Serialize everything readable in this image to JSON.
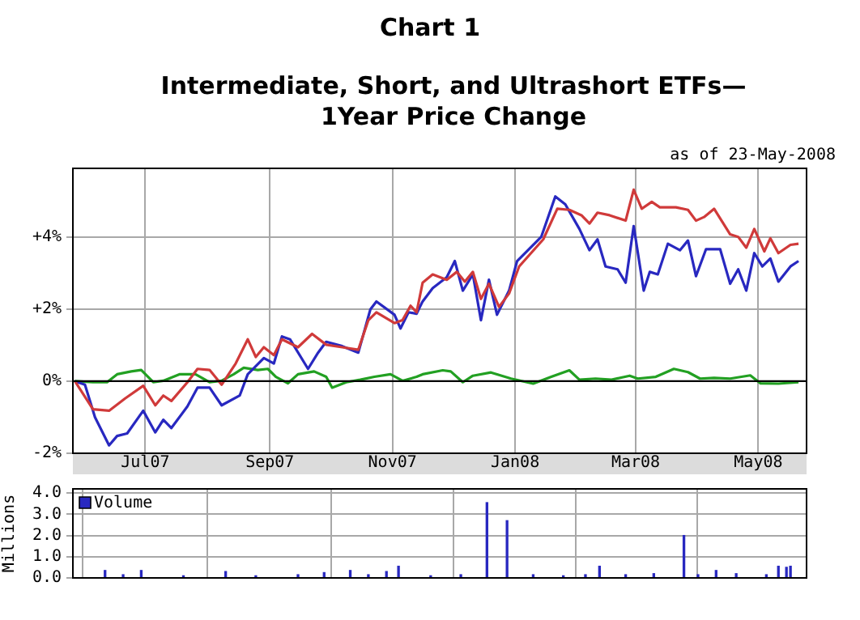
{
  "chart_data": [
    {
      "type": "line",
      "title": "Chart 1",
      "subtitle": "Intermediate, Short, and Ultrashort ETFs—1Year Price Change",
      "annotations": [
        "as of 23-May-2008"
      ],
      "xlim": [
        "2007-05-26",
        "2008-05-25"
      ],
      "xticks": [
        {
          "value": "2007-07-01",
          "label": "Jul07"
        },
        {
          "value": "2007-09-01",
          "label": "Sep07"
        },
        {
          "value": "2007-11-01",
          "label": "Nov07"
        },
        {
          "value": "2008-01-01",
          "label": "Jan08"
        },
        {
          "value": "2008-03-01",
          "label": "Mar08"
        },
        {
          "value": "2008-05-01",
          "label": "May08"
        }
      ],
      "ylim": [
        -2,
        5.9
      ],
      "yticks": [
        {
          "value": 4,
          "label": "+4%"
        },
        {
          "value": 2,
          "label": "+2%"
        },
        {
          "value": 0,
          "label": "0%"
        },
        {
          "value": -2,
          "label": "-2%"
        }
      ],
      "grid": true,
      "legend": false,
      "ref_lines": [
        {
          "axis": "y",
          "value": 0,
          "color": "#000000"
        }
      ],
      "series": [
        {
          "color": "#d03a3a",
          "x": [
            "2007-05-27",
            "2007-06-05",
            "2007-06-13",
            "2007-06-21",
            "2007-06-30",
            "2007-07-06",
            "2007-07-10",
            "2007-07-14",
            "2007-07-22",
            "2007-07-27",
            "2007-08-02",
            "2007-08-08",
            "2007-08-15",
            "2007-08-21",
            "2007-08-25",
            "2007-08-29",
            "2007-09-03",
            "2007-09-07",
            "2007-09-15",
            "2007-09-22",
            "2007-09-29",
            "2007-10-07",
            "2007-10-15",
            "2007-10-20",
            "2007-10-24",
            "2007-11-02",
            "2007-11-06",
            "2007-11-10",
            "2007-11-13",
            "2007-11-16",
            "2007-11-21",
            "2007-11-28",
            "2007-12-03",
            "2007-12-07",
            "2007-12-11",
            "2007-12-15",
            "2007-12-19",
            "2007-12-24",
            "2007-12-29",
            "2008-01-03",
            "2008-01-15",
            "2008-01-22",
            "2008-01-28",
            "2008-02-03",
            "2008-02-07",
            "2008-02-11",
            "2008-02-17",
            "2008-02-25",
            "2008-02-29",
            "2008-03-04",
            "2008-03-09",
            "2008-03-13",
            "2008-03-21",
            "2008-03-27",
            "2008-03-31",
            "2008-04-04",
            "2008-04-09",
            "2008-04-17",
            "2008-04-21",
            "2008-04-25",
            "2008-04-29",
            "2008-05-04",
            "2008-05-07",
            "2008-05-11",
            "2008-05-17",
            "2008-05-21"
          ],
          "values": [
            0,
            -0.78,
            -0.82,
            -0.48,
            -0.13,
            -0.67,
            -0.4,
            -0.55,
            -0.03,
            0.34,
            0.31,
            -0.1,
            0.49,
            1.16,
            0.67,
            0.94,
            0.72,
            1.16,
            0.94,
            1.31,
            1.01,
            0.94,
            0.87,
            1.69,
            1.91,
            1.61,
            1.69,
            2.09,
            1.91,
            2.73,
            2.96,
            2.81,
            3.03,
            2.76,
            3.03,
            2.28,
            2.7,
            2.06,
            2.43,
            3.18,
            3.93,
            4.78,
            4.75,
            4.6,
            4.37,
            4.67,
            4.6,
            4.45,
            5.31,
            4.78,
            4.97,
            4.82,
            4.82,
            4.75,
            4.45,
            4.55,
            4.78,
            4.07,
            4.0,
            3.7,
            4.22,
            3.6,
            3.96,
            3.55,
            3.78,
            3.81
          ]
        },
        {
          "color": "#2828c0",
          "x": [
            "2007-05-27",
            "2007-06-01",
            "2007-06-06",
            "2007-06-13",
            "2007-06-17",
            "2007-06-22",
            "2007-06-30",
            "2007-07-06",
            "2007-07-10",
            "2007-07-14",
            "2007-07-22",
            "2007-07-27",
            "2007-08-02",
            "2007-08-08",
            "2007-08-17",
            "2007-08-21",
            "2007-08-29",
            "2007-09-03",
            "2007-09-07",
            "2007-09-11",
            "2007-09-20",
            "2007-09-25",
            "2007-09-29",
            "2007-10-07",
            "2007-10-15",
            "2007-10-21",
            "2007-10-24",
            "2007-11-02",
            "2007-11-05",
            "2007-11-09",
            "2007-11-13",
            "2007-11-16",
            "2007-11-21",
            "2007-11-28",
            "2007-12-02",
            "2007-12-06",
            "2007-12-11",
            "2007-12-15",
            "2007-12-19",
            "2007-12-23",
            "2007-12-29",
            "2008-01-02",
            "2008-01-14",
            "2008-01-21",
            "2008-01-26",
            "2008-02-02",
            "2008-02-07",
            "2008-02-11",
            "2008-02-15",
            "2008-02-21",
            "2008-02-25",
            "2008-02-29",
            "2008-03-05",
            "2008-03-08",
            "2008-03-12",
            "2008-03-17",
            "2008-03-23",
            "2008-03-27",
            "2008-03-31",
            "2008-04-05",
            "2008-04-12",
            "2008-04-17",
            "2008-04-21",
            "2008-04-25",
            "2008-04-29",
            "2008-05-03",
            "2008-05-07",
            "2008-05-11",
            "2008-05-17",
            "2008-05-21"
          ],
          "values": [
            0,
            -0.1,
            -1.0,
            -1.78,
            -1.52,
            -1.45,
            -0.82,
            -1.42,
            -1.07,
            -1.3,
            -0.7,
            -0.18,
            -0.18,
            -0.67,
            -0.4,
            0.19,
            0.64,
            0.49,
            1.24,
            1.16,
            0.34,
            0.79,
            1.09,
            0.97,
            0.79,
            1.99,
            2.21,
            1.84,
            1.46,
            1.91,
            1.87,
            2.21,
            2.58,
            2.88,
            3.33,
            2.51,
            2.96,
            1.69,
            2.81,
            1.84,
            2.51,
            3.33,
            4.0,
            5.12,
            4.9,
            4.22,
            3.63,
            3.93,
            3.18,
            3.1,
            2.73,
            4.3,
            2.51,
            3.03,
            2.96,
            3.81,
            3.63,
            3.9,
            2.91,
            3.66,
            3.66,
            2.7,
            3.1,
            2.51,
            3.55,
            3.18,
            3.4,
            2.76,
            3.18,
            3.33
          ]
        },
        {
          "color": "#22a022",
          "x": [
            "2007-05-27",
            "2007-06-05",
            "2007-06-12",
            "2007-06-17",
            "2007-06-24",
            "2007-06-29",
            "2007-07-05",
            "2007-07-10",
            "2007-07-18",
            "2007-07-26",
            "2007-08-02",
            "2007-08-08",
            "2007-08-14",
            "2007-08-19",
            "2007-08-26",
            "2007-08-31",
            "2007-09-04",
            "2007-09-10",
            "2007-09-15",
            "2007-09-23",
            "2007-09-29",
            "2007-10-02",
            "2007-10-09",
            "2007-10-16",
            "2007-10-23",
            "2007-10-31",
            "2007-11-06",
            "2007-11-13",
            "2007-11-16",
            "2007-11-26",
            "2007-11-30",
            "2007-12-06",
            "2007-12-11",
            "2007-12-20",
            "2007-12-30",
            "2008-01-10",
            "2008-01-19",
            "2008-01-28",
            "2008-02-02",
            "2008-02-10",
            "2008-02-18",
            "2008-02-27",
            "2008-03-02",
            "2008-03-11",
            "2008-03-20",
            "2008-03-27",
            "2008-04-02",
            "2008-04-09",
            "2008-04-17",
            "2008-04-27",
            "2008-05-02",
            "2008-05-11",
            "2008-05-21"
          ],
          "values": [
            0,
            -0.03,
            -0.03,
            0.19,
            0.27,
            0.31,
            -0.03,
            0.01,
            0.19,
            0.19,
            -0.03,
            0.01,
            0.19,
            0.37,
            0.31,
            0.34,
            0.12,
            -0.06,
            0.19,
            0.27,
            0.12,
            -0.18,
            -0.03,
            0.04,
            0.12,
            0.19,
            0.01,
            0.12,
            0.19,
            0.3,
            0.27,
            -0.03,
            0.15,
            0.24,
            0.07,
            -0.07,
            0.12,
            0.3,
            0.04,
            0.07,
            0.04,
            0.15,
            0.07,
            0.12,
            0.34,
            0.25,
            0.07,
            0.09,
            0.07,
            0.16,
            -0.06,
            -0.07,
            -0.03
          ]
        }
      ]
    },
    {
      "type": "bar",
      "ylabel": "Millions",
      "legend": "top left",
      "grid": true,
      "tick_labels": "y",
      "xlim": [
        "2007-05-26",
        "2008-05-25"
      ],
      "xticks": [
        {
          "value": "2007-07-01",
          "label": null
        },
        {
          "value": "2007-09-01",
          "label": null
        },
        {
          "value": "2007-11-01",
          "label": null
        },
        {
          "value": "2008-01-01",
          "label": null
        },
        {
          "value": "2008-03-01",
          "label": null
        },
        {
          "value": "2008-05-01",
          "label": null
        }
      ],
      "ylim": [
        0,
        4.2
      ],
      "yticks": [
        {
          "value": 0,
          "label": "0.0"
        },
        {
          "value": 1,
          "label": "1.0"
        },
        {
          "value": 2,
          "label": "2.0"
        },
        {
          "value": 3,
          "label": "3.0"
        },
        {
          "value": 4,
          "label": "4.0"
        }
      ],
      "series": [
        {
          "name": "Volume",
          "color": "#2828c0",
          "x": [
            "2007-06-11",
            "2007-06-20",
            "2007-06-29",
            "2007-07-20",
            "2007-08-10",
            "2007-08-25",
            "2007-09-15",
            "2007-09-28",
            "2007-10-11",
            "2007-10-20",
            "2007-10-29",
            "2007-11-04",
            "2007-11-20",
            "2007-12-05",
            "2007-12-18",
            "2007-12-28",
            "2008-01-10",
            "2008-01-25",
            "2008-02-05",
            "2008-02-12",
            "2008-02-25",
            "2008-03-10",
            "2008-03-25",
            "2008-04-01",
            "2008-04-10",
            "2008-04-20",
            "2008-05-05",
            "2008-05-11",
            "2008-05-15",
            "2008-05-17"
          ],
          "values": [
            0.35,
            0.15,
            0.35,
            0.1,
            0.3,
            0.1,
            0.15,
            0.25,
            0.35,
            0.15,
            0.3,
            0.55,
            0.1,
            0.15,
            3.55,
            2.7,
            0.15,
            0.1,
            0.15,
            0.55,
            0.15,
            0.2,
            2.0,
            0.15,
            0.35,
            0.2,
            0.15,
            0.55,
            0.5,
            0.55
          ]
        }
      ]
    }
  ]
}
